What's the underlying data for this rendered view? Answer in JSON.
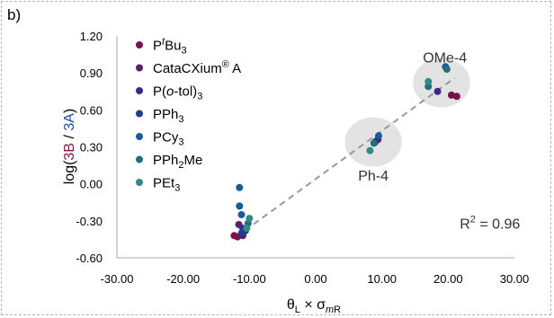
{
  "panel_label": "b)",
  "chart_data": {
    "type": "scatter",
    "xlim": [
      -30,
      30
    ],
    "ylim": [
      -0.6,
      1.2
    ],
    "x_ticks": [
      "-30.00",
      "-20.00",
      "-10.00",
      "0.00",
      "10.00",
      "20.00",
      "30.00"
    ],
    "y_ticks": [
      "-0.60",
      "-0.30",
      "0.00",
      "0.30",
      "0.60",
      "0.90",
      "1.20"
    ],
    "xlabel": "θL × σmR",
    "ylabel": {
      "pre": "log(",
      "a": "3B",
      "sep": " / ",
      "b": "3A",
      "post": ")"
    },
    "grid": false,
    "legend_position": "top-left",
    "series": [
      {
        "name": "PtBu3",
        "color": "#7b1148",
        "points": [
          [
            -12.3,
            -0.42
          ],
          [
            -11.8,
            -0.43
          ],
          [
            20.5,
            0.72
          ],
          [
            21.3,
            0.71
          ]
        ]
      },
      {
        "name": "CataCXium® A",
        "color": "#5a1e6a",
        "points": [
          [
            -11.6,
            -0.33
          ],
          [
            -11.0,
            -0.42
          ],
          [
            9.4,
            0.36
          ]
        ]
      },
      {
        "name": "P(o-tol)3",
        "color": "#3b2a85",
        "points": [
          [
            -11.0,
            -0.36
          ],
          [
            9.0,
            0.34
          ],
          [
            18.4,
            0.75
          ]
        ]
      },
      {
        "name": "PPh3",
        "color": "#1e3f8f",
        "points": [
          [
            -10.6,
            -0.38
          ],
          [
            -11.2,
            -0.4
          ]
        ]
      },
      {
        "name": "PCy3",
        "color": "#185a9a",
        "points": [
          [
            -11.5,
            -0.03
          ],
          [
            -11.5,
            -0.18
          ],
          [
            -11.2,
            -0.25
          ],
          [
            9.5,
            0.39
          ],
          [
            19.6,
            0.95
          ]
        ]
      },
      {
        "name": "PPh2Me",
        "color": "#1f6f7e",
        "points": [
          [
            -10.2,
            -0.32
          ],
          [
            8.8,
            0.33
          ],
          [
            17.0,
            0.79
          ],
          [
            19.8,
            0.93
          ]
        ]
      },
      {
        "name": "PEt3",
        "color": "#2f8c84",
        "points": [
          [
            -10.0,
            -0.28
          ],
          [
            -10.4,
            -0.36
          ],
          [
            8.2,
            0.27
          ],
          [
            17.0,
            0.83
          ]
        ]
      }
    ],
    "trendline": {
      "x": [
        -12,
        21
      ],
      "y": [
        -0.43,
        0.86
      ]
    },
    "highlights": [
      {
        "cx": 19.0,
        "cy": 0.82,
        "rx": 4.3,
        "ry": 0.2,
        "label": "OMe-4",
        "label_at": [
          19.5,
          1.03
        ]
      },
      {
        "cx": 8.7,
        "cy": 0.34,
        "rx": 4.3,
        "ry": 0.2,
        "label": "Ph-4",
        "label_at": [
          8.7,
          0.07
        ]
      }
    ],
    "r2": {
      "text": "R2 = 0.96",
      "at": [
        26.3,
        -0.32
      ]
    }
  }
}
